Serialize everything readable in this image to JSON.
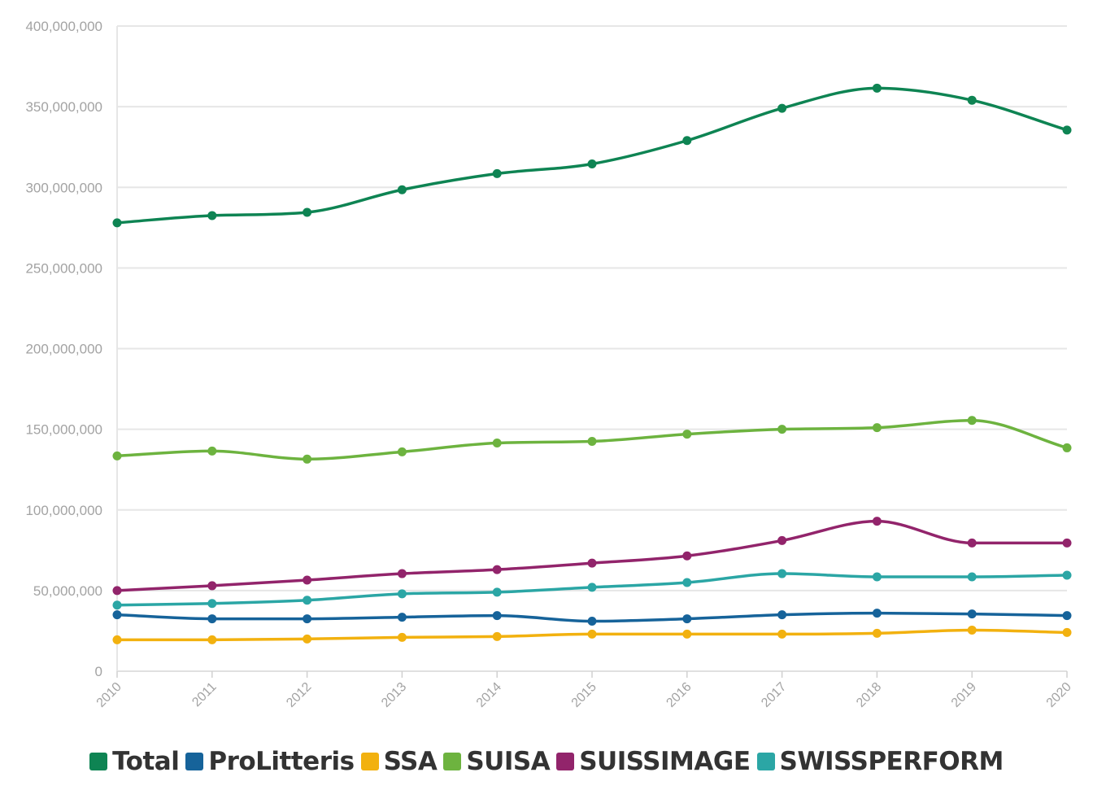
{
  "chart_data": {
    "type": "line",
    "x": [
      "2010",
      "2011",
      "2012",
      "2013",
      "2014",
      "2015",
      "2016",
      "2017",
      "2018",
      "2019",
      "2020"
    ],
    "ylim": [
      0,
      400000000
    ],
    "yticks": [
      0,
      50000000,
      100000000,
      150000000,
      200000000,
      250000000,
      300000000,
      350000000,
      400000000
    ],
    "ytick_labels": [
      "0",
      "50,000,000",
      "100,000,000",
      "150,000,000",
      "200,000,000",
      "250,000,000",
      "300,000,000",
      "350,000,000",
      "400,000,000"
    ],
    "grid": true,
    "legend_position": "bottom",
    "smooth": true,
    "series": [
      {
        "name": "Total",
        "color": "#0e8453",
        "values": [
          278000000,
          282500000,
          284500000,
          298500000,
          308500000,
          314500000,
          329000000,
          349000000,
          361500000,
          354000000,
          335500000
        ]
      },
      {
        "name": "ProLitteris",
        "color": "#16639a",
        "values": [
          35000000,
          32500000,
          32500000,
          33500000,
          34500000,
          31000000,
          32500000,
          35000000,
          36000000,
          35500000,
          34500000
        ]
      },
      {
        "name": "SSA",
        "color": "#f2b10f",
        "values": [
          19500000,
          19500000,
          20000000,
          21000000,
          21500000,
          23000000,
          23000000,
          23000000,
          23500000,
          25500000,
          24000000
        ]
      },
      {
        "name": "SUISA",
        "color": "#6db33f",
        "values": [
          133500000,
          136500000,
          131500000,
          136000000,
          141500000,
          142500000,
          147000000,
          150000000,
          151000000,
          155500000,
          138500000
        ]
      },
      {
        "name": "SUISSIMAGE",
        "color": "#92246b",
        "values": [
          50000000,
          53000000,
          56500000,
          60500000,
          63000000,
          67000000,
          71500000,
          81000000,
          93000000,
          79500000,
          79500000
        ]
      },
      {
        "name": "SWISSPERFORM",
        "color": "#2ba6a5",
        "values": [
          41000000,
          42000000,
          44000000,
          48000000,
          49000000,
          52000000,
          55000000,
          60500000,
          58500000,
          58500000,
          59500000
        ]
      }
    ]
  }
}
